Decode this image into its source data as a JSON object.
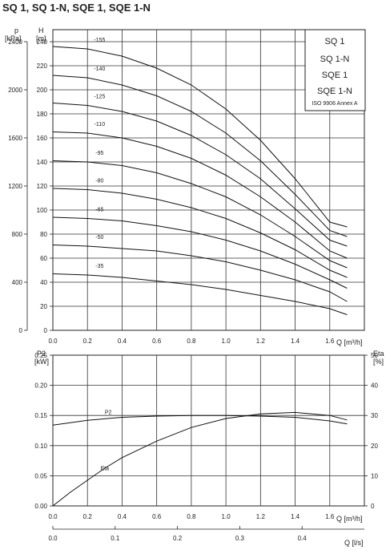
{
  "title": "SQ 1, SQ 1-N, SQE 1, SQE 1-N",
  "legend_box": [
    "SQ 1",
    "SQ 1-N",
    "SQE 1",
    "SQE 1-N",
    "ISO 9906 Annex A"
  ],
  "top": {
    "p_label": "p",
    "p_unit": "[kPa]",
    "h_label": "H",
    "h_unit": "[m]",
    "x_label": "Q [m³/h]",
    "x_ticks": [
      "0.0",
      "0.2",
      "0.4",
      "0.6",
      "0.8",
      "1.0",
      "1.2",
      "1.4",
      "1.6"
    ],
    "h_ticks": [
      "0",
      "20",
      "40",
      "60",
      "80",
      "100",
      "120",
      "140",
      "160",
      "180",
      "200",
      "220",
      "240"
    ],
    "p_ticks": [
      "0",
      "400",
      "800",
      "1200",
      "1600",
      "2000",
      "2400"
    ]
  },
  "bottom": {
    "p2_label": "P2",
    "p2_unit": "[kW]",
    "eta_label": "Eta",
    "eta_unit": "[%]",
    "x_label": "Q [m³/h]",
    "x2_label": "Q [l/s]",
    "x_ticks": [
      "0.0",
      "0.2",
      "0.4",
      "0.6",
      "0.8",
      "1.0",
      "1.2",
      "1.4",
      "1.6"
    ],
    "x2_ticks": [
      "0.0",
      "0.1",
      "0.2",
      "0.3",
      "0.4"
    ],
    "p2_ticks": [
      "0.00",
      "0.05",
      "0.10",
      "0.15",
      "0.20",
      "0.25"
    ],
    "eta_ticks": [
      "0",
      "10",
      "20",
      "30",
      "40",
      "50"
    ]
  },
  "chart_data": [
    {
      "type": "line",
      "title": "SQ 1, SQ 1-N, SQE 1, SQE 1-N",
      "xlabel": "Q [m³/h]",
      "ylabel": "H [m]",
      "y2label": "p [kPa]",
      "xlim": [
        0,
        1.8
      ],
      "ylim": [
        0,
        250
      ],
      "grid": true,
      "series": [
        {
          "name": "-155",
          "x": [
            0,
            0.2,
            0.4,
            0.6,
            0.8,
            1.0,
            1.2,
            1.4,
            1.6,
            1.7
          ],
          "y": [
            236,
            234,
            228,
            218,
            204,
            184,
            158,
            126,
            90,
            86
          ]
        },
        {
          "name": "-140",
          "x": [
            0,
            0.2,
            0.4,
            0.6,
            0.8,
            1.0,
            1.2,
            1.4,
            1.6,
            1.7
          ],
          "y": [
            212,
            210,
            204,
            195,
            182,
            164,
            141,
            113,
            83,
            78
          ]
        },
        {
          "name": "-125",
          "x": [
            0,
            0.2,
            0.4,
            0.6,
            0.8,
            1.0,
            1.2,
            1.4,
            1.6,
            1.7
          ],
          "y": [
            189,
            187,
            182,
            174,
            162,
            146,
            126,
            101,
            75,
            70
          ]
        },
        {
          "name": "-110",
          "x": [
            0,
            0.2,
            0.4,
            0.6,
            0.8,
            1.0,
            1.2,
            1.4,
            1.6,
            1.7
          ],
          "y": [
            165,
            164,
            160,
            153,
            143,
            129,
            111,
            90,
            66,
            60
          ]
        },
        {
          "name": "-95",
          "x": [
            0,
            0.2,
            0.4,
            0.6,
            0.8,
            1.0,
            1.2,
            1.4,
            1.6,
            1.7
          ],
          "y": [
            141,
            140,
            137,
            131,
            122,
            111,
            96,
            78,
            58,
            52
          ]
        },
        {
          "name": "-80",
          "x": [
            0,
            0.2,
            0.4,
            0.6,
            0.8,
            1.0,
            1.2,
            1.4,
            1.6,
            1.7
          ],
          "y": [
            118,
            117,
            114,
            109,
            102,
            93,
            81,
            67,
            50,
            44
          ]
        },
        {
          "name": "-65",
          "x": [
            0,
            0.2,
            0.4,
            0.6,
            0.8,
            1.0,
            1.2,
            1.4,
            1.6,
            1.7
          ],
          "y": [
            94,
            93,
            91,
            87,
            82,
            75,
            66,
            55,
            42,
            35
          ]
        },
        {
          "name": "-50",
          "x": [
            0,
            0.2,
            0.4,
            0.6,
            0.8,
            1.0,
            1.2,
            1.4,
            1.6,
            1.7
          ],
          "y": [
            71,
            70,
            68,
            66,
            62,
            57,
            50,
            42,
            32,
            24
          ]
        },
        {
          "name": "-35",
          "x": [
            0,
            0.2,
            0.4,
            0.6,
            0.8,
            1.0,
            1.2,
            1.4,
            1.6,
            1.7
          ],
          "y": [
            47,
            46,
            44,
            41,
            38,
            34,
            29,
            24,
            18,
            13
          ]
        }
      ]
    },
    {
      "type": "line",
      "xlabel": "Q [m³/h]",
      "ylabel": "P2 [kW]",
      "y2label": "Eta [%]",
      "xlim": [
        0,
        1.8
      ],
      "ylim": [
        0,
        0.25
      ],
      "y2lim": [
        0,
        50
      ],
      "grid": true,
      "series": [
        {
          "name": "P2",
          "axis": "left",
          "x": [
            0,
            0.2,
            0.4,
            0.6,
            0.8,
            1.0,
            1.2,
            1.4,
            1.6,
            1.7
          ],
          "y": [
            0.134,
            0.142,
            0.147,
            0.149,
            0.15,
            0.15,
            0.149,
            0.147,
            0.141,
            0.136
          ]
        },
        {
          "name": "Eta",
          "axis": "right",
          "x": [
            0,
            0.1,
            0.2,
            0.3,
            0.4,
            0.6,
            0.8,
            1.0,
            1.2,
            1.4,
            1.6,
            1.7
          ],
          "y": [
            0,
            4.5,
            8.5,
            12.5,
            16,
            21.5,
            26,
            29,
            30.5,
            31,
            30,
            28.5
          ]
        }
      ]
    }
  ]
}
